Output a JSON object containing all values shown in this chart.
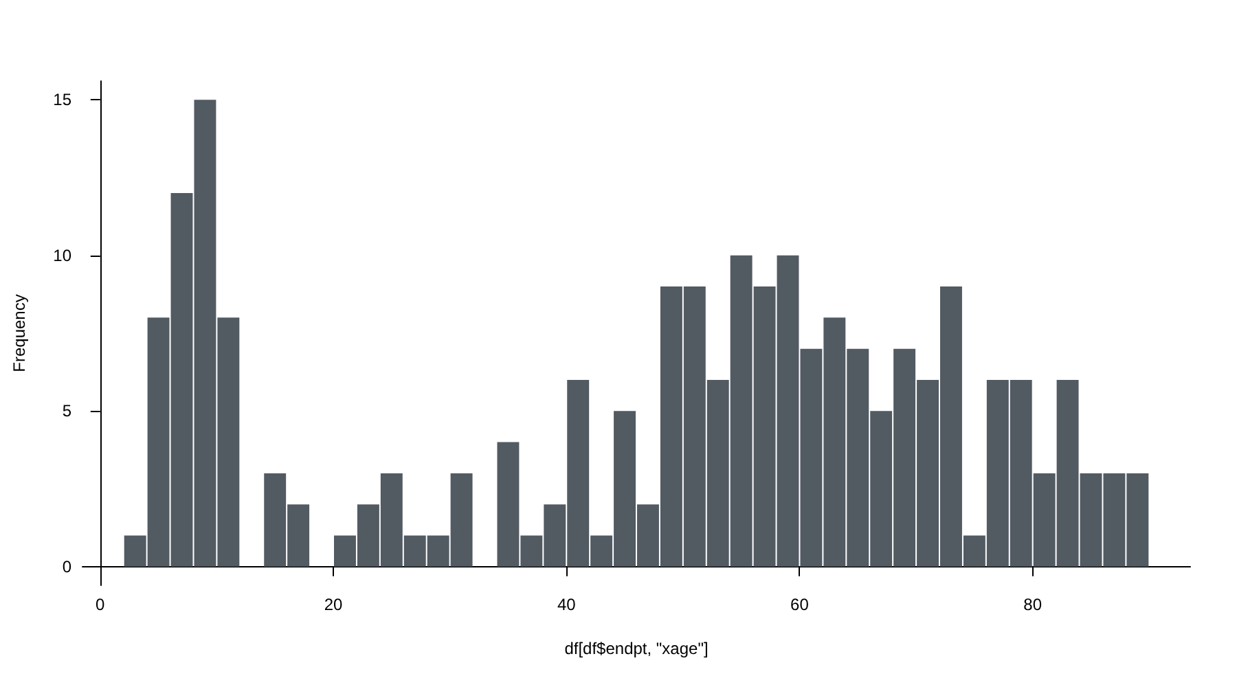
{
  "chart_data": {
    "type": "histogram",
    "xlabel": "df[df$endpt, \"xage\"]",
    "ylabel": "Frequency",
    "bins": [
      2,
      4,
      6,
      8,
      10,
      12,
      14,
      16,
      18,
      20,
      22,
      24,
      26,
      28,
      30,
      32,
      34,
      36,
      38,
      40,
      42,
      44,
      46,
      48,
      50,
      52,
      54,
      56,
      58,
      60,
      62,
      64,
      66,
      68,
      70,
      72,
      74,
      76,
      78,
      80,
      82,
      84,
      86,
      88,
      90
    ],
    "values": [
      1,
      8,
      12,
      15,
      8,
      0,
      3,
      2,
      0,
      1,
      2,
      3,
      1,
      1,
      3,
      0,
      4,
      1,
      2,
      6,
      1,
      5,
      2,
      9,
      9,
      6,
      10,
      9,
      10,
      7,
      8,
      7,
      5,
      7,
      6,
      9,
      1,
      6,
      6,
      3,
      6,
      3,
      3,
      3
    ],
    "color": "#525a62",
    "xlim": [
      -1.52,
      93.52
    ],
    "xticks": [
      0,
      20,
      40,
      60,
      80
    ],
    "ylim": [
      -0.6,
      15.6
    ],
    "yticks": [
      0,
      5,
      10,
      15
    ],
    "grid": false
  }
}
